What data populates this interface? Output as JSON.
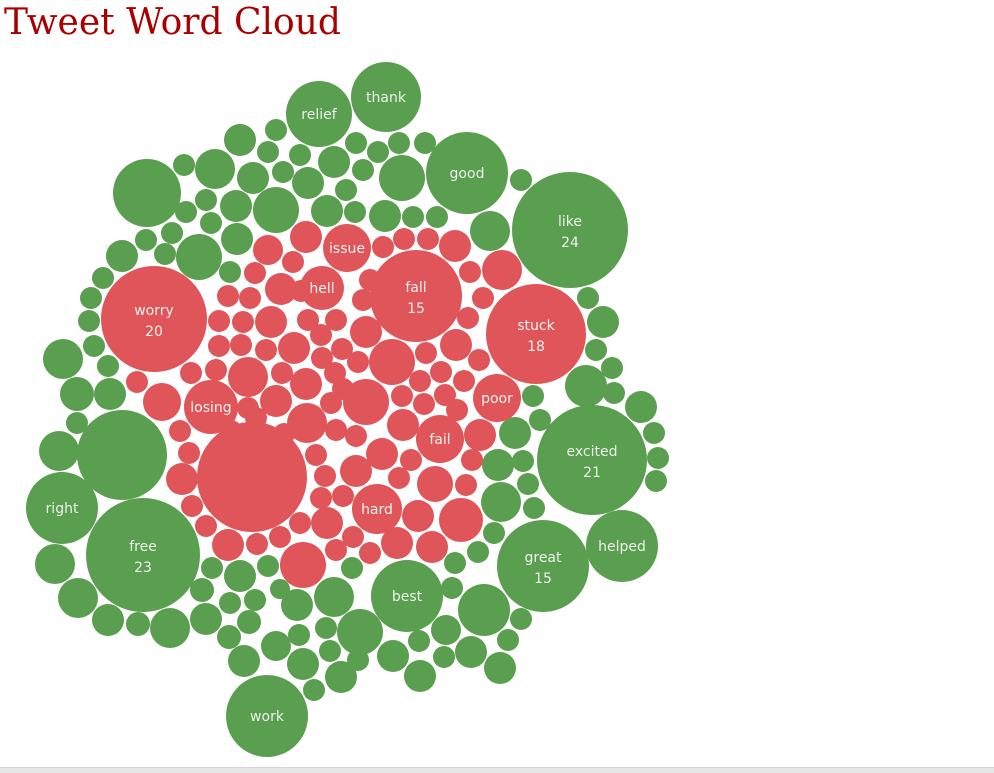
{
  "title": "Tweet Word Cloud",
  "colors": {
    "positive": "#5a9e4f",
    "negative": "#e05559",
    "title": "#a80000",
    "label": "#eaf2ea"
  },
  "chart_data": {
    "type": "bubble",
    "title": "Tweet Word Cloud",
    "labeled_words": [
      {
        "word": "like",
        "count": 24,
        "sentiment": "positive"
      },
      {
        "word": "free",
        "count": 23,
        "sentiment": "positive"
      },
      {
        "word": "excited",
        "count": 21,
        "sentiment": "positive"
      },
      {
        "word": "worry",
        "count": 20,
        "sentiment": "negative"
      },
      {
        "word": "stuck",
        "count": 18,
        "sentiment": "negative"
      },
      {
        "word": "fall",
        "count": 15,
        "sentiment": "negative"
      },
      {
        "word": "great",
        "count": 15,
        "sentiment": "positive"
      },
      {
        "word": "helped",
        "sentiment": "positive"
      },
      {
        "word": "best",
        "sentiment": "positive"
      },
      {
        "word": "right",
        "sentiment": "positive"
      },
      {
        "word": "work",
        "sentiment": "positive"
      },
      {
        "word": "good",
        "sentiment": "positive"
      },
      {
        "word": "relief",
        "sentiment": "positive"
      },
      {
        "word": "thank",
        "sentiment": "positive"
      },
      {
        "word": "losing",
        "sentiment": "negative"
      },
      {
        "word": "poor",
        "sentiment": "negative"
      },
      {
        "word": "fail",
        "sentiment": "negative"
      },
      {
        "word": "hard",
        "sentiment": "negative"
      },
      {
        "word": "hell",
        "sentiment": "negative"
      },
      {
        "word": "issue",
        "sentiment": "negative"
      }
    ]
  }
}
